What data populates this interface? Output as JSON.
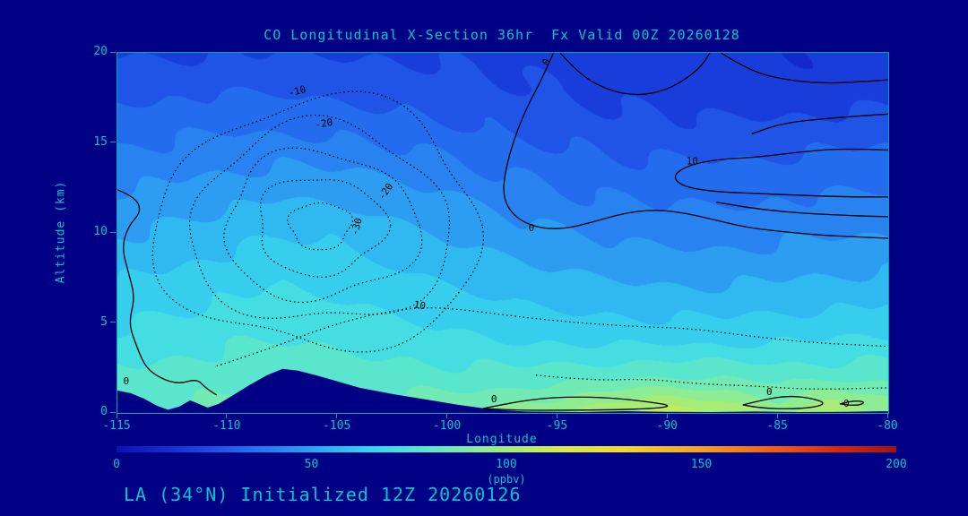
{
  "colors": {
    "background": "#000084",
    "text": "#00c8c8",
    "axis": "#00a8a8",
    "contour": "#000000",
    "terrain": "#000084"
  },
  "chart_data": {
    "type": "heatmap",
    "title": "CO Longitudinal X-Section 36hr  Fx Valid 00Z 20260128",
    "xlabel": "Longitude",
    "ylabel": "Altitude (km)",
    "footer": "LA (34°N) Initialized 12Z 20260126",
    "xlim": [
      -115,
      -80
    ],
    "ylim": [
      0,
      20
    ],
    "x_ticks": [
      -115,
      -110,
      -105,
      -100,
      -95,
      -90,
      -85,
      -80
    ],
    "y_ticks": [
      0,
      5,
      10,
      15,
      20
    ],
    "grid": {
      "lons": [
        -115,
        -112.5,
        -110,
        -107.5,
        -105,
        -102.5,
        -100,
        -97.5,
        -95,
        -92.5,
        -90,
        -87.5,
        -85,
        -82.5,
        -80
      ],
      "alts": [
        0,
        2,
        4,
        6,
        8,
        10,
        12,
        14,
        16,
        18,
        20
      ],
      "values_ppbv": [
        [
          82,
          84,
          86,
          87,
          87,
          87,
          88,
          92,
          98,
          106,
          110,
          105,
          96,
          108,
          95
        ],
        [
          76,
          78,
          80,
          81,
          80,
          79,
          78,
          78,
          79,
          81,
          83,
          82,
          80,
          80,
          81
        ],
        [
          70,
          72,
          74,
          75,
          74,
          72,
          70,
          68,
          67,
          66,
          66,
          66,
          67,
          68,
          69
        ],
        [
          64,
          66,
          68,
          70,
          69,
          66,
          63,
          61,
          59,
          58,
          57,
          57,
          58,
          59,
          60
        ],
        [
          58,
          60,
          63,
          66,
          64,
          61,
          57,
          54,
          52,
          50,
          49,
          49,
          50,
          51,
          52
        ],
        [
          52,
          54,
          57,
          60,
          59,
          55,
          51,
          48,
          45,
          43,
          42,
          42,
          43,
          44,
          45
        ],
        [
          46,
          48,
          50,
          52,
          51,
          48,
          45,
          42,
          39,
          37,
          36,
          36,
          37,
          38,
          39
        ],
        [
          40,
          41,
          43,
          44,
          43,
          41,
          38,
          35,
          33,
          31,
          30,
          30,
          31,
          32,
          33
        ],
        [
          34,
          35,
          36,
          36,
          35,
          33,
          31,
          29,
          27,
          25,
          24,
          23,
          24,
          25,
          26
        ],
        [
          28,
          28,
          29,
          29,
          28,
          27,
          26,
          24,
          22,
          20,
          19,
          18,
          18,
          18,
          19
        ],
        [
          22,
          22,
          22,
          22,
          22,
          22,
          21,
          20,
          19,
          18,
          17,
          17,
          16,
          16,
          16
        ]
      ]
    },
    "colorbar": {
      "min": 0,
      "max": 200,
      "ticks": [
        0,
        50,
        100,
        150,
        200
      ],
      "units": "(ppbv)",
      "stops": [
        [
          0,
          "#0f0fb4"
        ],
        [
          15,
          "#1632d2"
        ],
        [
          25,
          "#1e50e6"
        ],
        [
          35,
          "#2470ee"
        ],
        [
          45,
          "#2a8ff2"
        ],
        [
          55,
          "#2fb4f0"
        ],
        [
          65,
          "#38d2ee"
        ],
        [
          75,
          "#4ce4da"
        ],
        [
          85,
          "#6eeab8"
        ],
        [
          95,
          "#92ec8e"
        ],
        [
          105,
          "#b4ec66"
        ],
        [
          115,
          "#d8ea48"
        ],
        [
          130,
          "#f0d830"
        ],
        [
          150,
          "#f4a01e"
        ],
        [
          170,
          "#ee5a12"
        ],
        [
          185,
          "#d8280c"
        ],
        [
          200,
          "#a01414"
        ]
      ]
    },
    "terrain_profile": [
      [
        -115,
        1.25
      ],
      [
        -114.4,
        1.1
      ],
      [
        -113.8,
        0.8
      ],
      [
        -113.2,
        0.4
      ],
      [
        -112.7,
        0.18
      ],
      [
        -112.2,
        0.35
      ],
      [
        -111.7,
        0.7
      ],
      [
        -111.3,
        0.5
      ],
      [
        -110.9,
        0.3
      ],
      [
        -110.4,
        0.5
      ],
      [
        -109.8,
        0.95
      ],
      [
        -109,
        1.55
      ],
      [
        -108.2,
        2.1
      ],
      [
        -107.5,
        2.45
      ],
      [
        -106.8,
        2.35
      ],
      [
        -106,
        2.1
      ],
      [
        -105,
        1.75
      ],
      [
        -104,
        1.4
      ],
      [
        -102.5,
        1.05
      ],
      [
        -101,
        0.75
      ],
      [
        -99.5,
        0.45
      ],
      [
        -98,
        0.2
      ],
      [
        -96.5,
        0.08
      ],
      [
        -94,
        0.05
      ],
      [
        -92,
        0.1
      ],
      [
        -90,
        0.06
      ],
      [
        -88,
        0.05
      ],
      [
        -86,
        0.08
      ],
      [
        -84,
        0.05
      ],
      [
        -82,
        0.06
      ],
      [
        -80,
        0.1
      ]
    ],
    "contour_lines": [
      {
        "style": "dotted",
        "shape": "ellipse",
        "cx": -105.8,
        "cy": 10.4,
        "rx": 1.4,
        "ry": 1.3
      },
      {
        "style": "dotted",
        "shape": "ellipse",
        "cx": -105.8,
        "cy": 10.4,
        "rx": 2.9,
        "ry": 2.7
      },
      {
        "style": "dotted",
        "shape": "ellipse",
        "cx": -105.8,
        "cy": 10.4,
        "rx": 4.4,
        "ry": 4.1
      },
      {
        "style": "dotted",
        "shape": "ellipse",
        "cx": -105.8,
        "cy": 10.4,
        "rx": 5.9,
        "ry": 5.5
      },
      {
        "style": "dotted",
        "shape": "ellipse",
        "cx": -105.8,
        "cy": 10.4,
        "rx": 7.4,
        "ry": 6.9
      },
      {
        "style": "dotted",
        "shape": "line",
        "points": [
          [
            -110.5,
            2.6
          ],
          [
            -108,
            3.6
          ],
          [
            -105.5,
            4.8
          ],
          [
            -103,
            5.6
          ],
          [
            -101,
            5.9
          ],
          [
            -99,
            5.7
          ],
          [
            -96.5,
            5.3
          ],
          [
            -94,
            5.0
          ],
          [
            -91.5,
            4.8
          ],
          [
            -89,
            4.7
          ],
          [
            -86.5,
            4.3
          ],
          [
            -83.5,
            3.9
          ],
          [
            -80,
            3.7
          ]
        ]
      },
      {
        "style": "dotted",
        "shape": "line",
        "points": [
          [
            -96,
            2.1
          ],
          [
            -93.5,
            1.8
          ],
          [
            -91,
            1.9
          ],
          [
            -88.5,
            1.6
          ],
          [
            -86,
            1.5
          ],
          [
            -83.5,
            1.3
          ],
          [
            -80,
            1.4
          ]
        ]
      },
      {
        "style": "solid",
        "shape": "line",
        "points": [
          [
            -115,
            12.4
          ],
          [
            -114.2,
            12.0
          ],
          [
            -113.9,
            11.2
          ],
          [
            -114.5,
            10.4
          ],
          [
            -114.8,
            9.2
          ],
          [
            -114.5,
            7.8
          ],
          [
            -114.2,
            6.4
          ],
          [
            -114.5,
            5.0
          ],
          [
            -114.1,
            3.6
          ],
          [
            -113.7,
            2.5
          ],
          [
            -113.0,
            1.9
          ],
          [
            -112.2,
            1.6
          ],
          [
            -111.4,
            1.9
          ],
          [
            -111.0,
            1.4
          ],
          [
            -110.5,
            1.0
          ]
        ]
      },
      {
        "style": "solid",
        "shape": "line",
        "points": [
          [
            -95.2,
            20
          ],
          [
            -95.7,
            18.6
          ],
          [
            -96.4,
            17.0
          ],
          [
            -97.0,
            15.2
          ],
          [
            -97.4,
            13.4
          ],
          [
            -97.5,
            12.0
          ],
          [
            -97.0,
            10.9
          ],
          [
            -96.0,
            10.3
          ],
          [
            -94.8,
            10.2
          ],
          [
            -93.4,
            10.6
          ],
          [
            -92.0,
            11.1
          ],
          [
            -90.6,
            11.3
          ],
          [
            -89.2,
            11.1
          ],
          [
            -87.8,
            10.7
          ],
          [
            -86.4,
            10.3
          ],
          [
            -85.0,
            10.1
          ],
          [
            -83.4,
            9.9
          ],
          [
            -81.8,
            9.8
          ],
          [
            -80,
            9.7
          ]
        ]
      },
      {
        "style": "solid",
        "shape": "line",
        "points": [
          [
            -94.9,
            20
          ],
          [
            -94.1,
            18.9
          ],
          [
            -92.9,
            18.0
          ],
          [
            -91.5,
            17.6
          ],
          [
            -90.1,
            17.9
          ],
          [
            -89.0,
            18.7
          ],
          [
            -88.4,
            19.4
          ],
          [
            -88.1,
            20
          ]
        ]
      },
      {
        "style": "solid",
        "shape": "line",
        "points": [
          [
            -87.6,
            20
          ],
          [
            -86.3,
            19.0
          ],
          [
            -84.7,
            18.5
          ],
          [
            -82.9,
            18.3
          ],
          [
            -81.2,
            18.4
          ],
          [
            -80,
            18.5
          ]
        ]
      },
      {
        "style": "solid",
        "shape": "line",
        "points": [
          [
            -80,
            16.6
          ],
          [
            -82.5,
            16.4
          ],
          [
            -84.8,
            16.1
          ],
          [
            -86.2,
            15.5
          ]
        ]
      },
      {
        "style": "solid",
        "shape": "line",
        "points": [
          [
            -80,
            14.6
          ],
          [
            -82,
            14.7
          ],
          [
            -84,
            14.5
          ],
          [
            -86,
            14.2
          ],
          [
            -87.6,
            14.1
          ],
          [
            -89.0,
            13.8
          ],
          [
            -89.8,
            13.2
          ],
          [
            -89.4,
            12.6
          ],
          [
            -88.0,
            12.3
          ],
          [
            -86.2,
            12.2
          ],
          [
            -84.2,
            12.1
          ],
          [
            -82,
            12.0
          ],
          [
            -80,
            12.0
          ]
        ]
      },
      {
        "style": "solid",
        "shape": "line",
        "points": [
          [
            -80,
            10.9
          ],
          [
            -83,
            11.0
          ],
          [
            -85.8,
            11.3
          ],
          [
            -87.8,
            11.7
          ]
        ]
      },
      {
        "style": "solid",
        "shape": "line",
        "points": [
          [
            -98.4,
            0.25
          ],
          [
            -97.0,
            0.6
          ],
          [
            -95.4,
            0.85
          ],
          [
            -93.8,
            0.9
          ],
          [
            -92.2,
            0.8
          ],
          [
            -90.8,
            0.6
          ],
          [
            -89.8,
            0.4
          ],
          [
            -90.6,
            0.25
          ],
          [
            -92.4,
            0.18
          ],
          [
            -94.6,
            0.15
          ],
          [
            -96.8,
            0.15
          ],
          [
            -98.4,
            0.25
          ]
        ]
      },
      {
        "style": "solid",
        "shape": "line",
        "points": [
          [
            -86.6,
            0.45
          ],
          [
            -85.6,
            0.75
          ],
          [
            -84.6,
            0.95
          ],
          [
            -83.6,
            0.85
          ],
          [
            -82.8,
            0.55
          ],
          [
            -83.4,
            0.3
          ],
          [
            -84.6,
            0.22
          ],
          [
            -85.8,
            0.28
          ],
          [
            -86.6,
            0.45
          ]
        ]
      },
      {
        "style": "solid",
        "shape": "line",
        "points": [
          [
            -82.2,
            0.5
          ],
          [
            -81.6,
            0.7
          ],
          [
            -81.0,
            0.6
          ],
          [
            -81.4,
            0.4
          ],
          [
            -82.2,
            0.5
          ]
        ]
      }
    ],
    "contour_labels": [
      {
        "text": "-10",
        "lon": -106.8,
        "alt": 17.7,
        "rot": -15
      },
      {
        "text": "-20",
        "lon": -105.6,
        "alt": 15.9,
        "rot": -10
      },
      {
        "text": "-20",
        "lon": -102.7,
        "alt": 12.2,
        "rot": -55
      },
      {
        "text": "-30",
        "lon": -104.0,
        "alt": 10.3,
        "rot": -75
      },
      {
        "text": "10",
        "lon": -101.3,
        "alt": 5.8,
        "rot": 10
      },
      {
        "text": "0",
        "lon": -96.2,
        "alt": 10.1,
        "rot": 0
      },
      {
        "text": "0",
        "lon": -95.4,
        "alt": 19.4,
        "rot": -60
      },
      {
        "text": "10",
        "lon": -88.9,
        "alt": 13.8,
        "rot": 0
      },
      {
        "text": "0",
        "lon": -114.6,
        "alt": 1.6,
        "rot": 0
      },
      {
        "text": "0",
        "lon": -97.9,
        "alt": 0.6,
        "rot": 0
      },
      {
        "text": "0",
        "lon": -85.4,
        "alt": 1.0,
        "rot": 0
      },
      {
        "text": "0",
        "lon": -81.9,
        "alt": 0.35,
        "rot": 0
      }
    ]
  }
}
